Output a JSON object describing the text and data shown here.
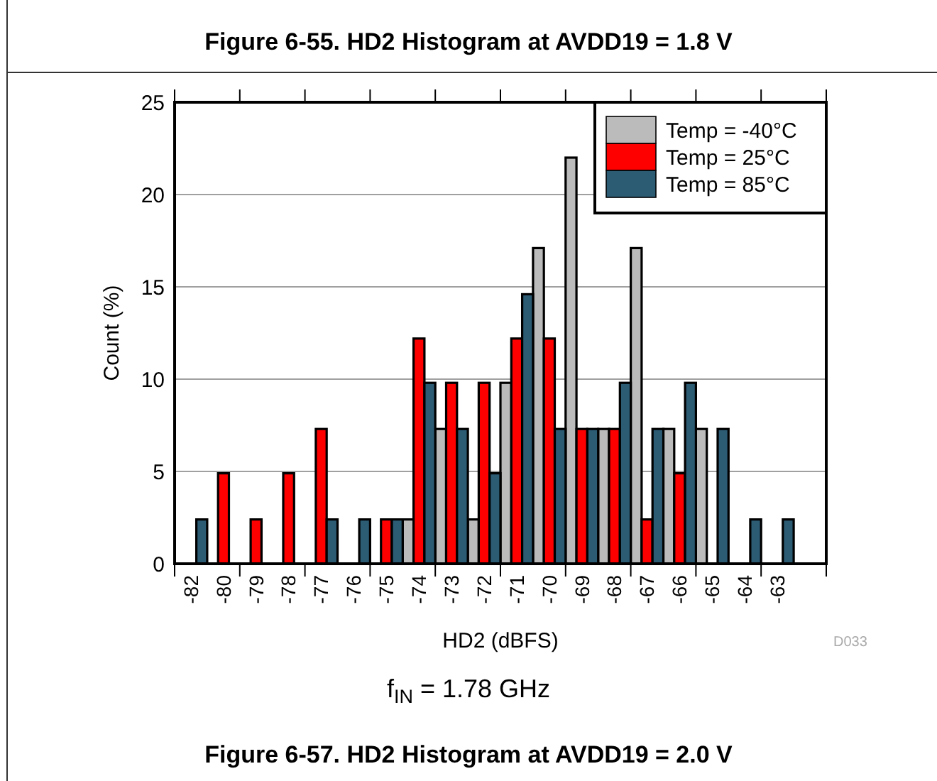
{
  "chart_data": {
    "type": "bar",
    "title": "Figure 6-57. HD2 Histogram at AVDD19 = 2.0 V",
    "subtitle": "f$_{IN}$ = 1.78 GHz",
    "xlabel": "HD2 (dBFS)",
    "ylabel": "Count (%)",
    "annotations": [
      "Figure 6-55. HD2 Histogram at AVDD19 = 1.8 V",
      "D033"
    ],
    "categories": [
      "-82",
      "-80",
      "-79",
      "-78",
      "-77",
      "-76",
      "-75",
      "-74",
      "-73",
      "-72",
      "-71",
      "-70",
      "-69",
      "-68",
      "-67",
      "-66",
      "-65",
      "-64",
      "-63",
      null
    ],
    "series": [
      {
        "name": "Temp = -40°C",
        "color": "#bbbbbb",
        "values": [
          0,
          0,
          0,
          0,
          0,
          0,
          0,
          2.4,
          7.3,
          2.4,
          9.8,
          17.1,
          22.0,
          7.3,
          17.1,
          7.3,
          7.3,
          0,
          0,
          0
        ]
      },
      {
        "name": "Temp = 25°C",
        "color": "#ff0000",
        "values": [
          0,
          4.9,
          2.4,
          4.9,
          7.3,
          0,
          2.4,
          12.2,
          9.8,
          9.8,
          12.2,
          12.2,
          7.3,
          7.3,
          2.4,
          4.9,
          0,
          0,
          0,
          0
        ]
      },
      {
        "name": "Temp = 85°C",
        "color": "#2c5b74",
        "values": [
          2.4,
          0,
          0,
          0,
          2.4,
          2.4,
          2.4,
          9.8,
          7.3,
          4.9,
          14.6,
          7.3,
          7.3,
          9.8,
          7.3,
          9.8,
          7.3,
          2.4,
          2.4,
          0
        ]
      }
    ],
    "ylim": [
      0,
      25
    ],
    "yticks": [
      0,
      5,
      10,
      15,
      20,
      25
    ],
    "grid": "y",
    "legend": "top right"
  }
}
